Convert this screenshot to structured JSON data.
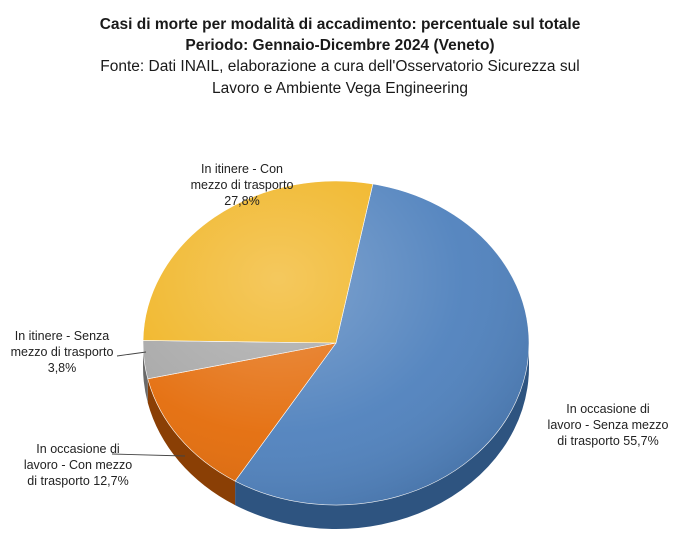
{
  "title": {
    "line1": "Casi di morte per modalità di accadimento: percentuale sul totale",
    "line2": "Periodo: Gennaio-Dicembre 2024 (Veneto)",
    "line3": "Fonte: Dati INAIL, elaborazione a cura dell'Osservatorio Sicurezza sul",
    "line4": "Lavoro e Ambiente Vega Engineering"
  },
  "chart_data": {
    "type": "pie",
    "title": "Casi di morte per modalità di accadimento: percentuale sul totale",
    "subtitle": "Periodo: Gennaio-Dicembre 2024 (Veneto)",
    "source": "Fonte: Dati INAIL, elaborazione a cura dell'Osservatorio Sicurezza sul Lavoro e Ambiente Vega Engineering",
    "unit": "%",
    "slices": [
      {
        "label": "In occasione di lavoro - Senza mezzo di trasporto",
        "value": 55.7,
        "value_text": "55,7%",
        "color": "#4F81BD",
        "dark": "#2E5480",
        "label_lines": [
          "In occasione di",
          "lavoro - Senza mezzo",
          "di trasporto 55,7%"
        ]
      },
      {
        "label": "In occasione di lavoro - Con mezzo di trasporto",
        "value": 12.7,
        "value_text": "12,7%",
        "color": "#E46C0A",
        "dark": "#8A3F05",
        "label_lines": [
          "In occasione di",
          "lavoro - Con mezzo",
          "di trasporto 12,7%"
        ]
      },
      {
        "label": "In itinere - Senza mezzo di trasporto",
        "value": 3.8,
        "value_text": "3,8%",
        "color": "#A6A6A6",
        "dark": "#6A6A6A",
        "label_lines": [
          "In itinere - Senza",
          "mezzo di trasporto",
          "3,8%"
        ]
      },
      {
        "label": "In itinere - Con mezzo di trasporto",
        "value": 27.8,
        "value_text": "27,8%",
        "color": "#F0B31F",
        "dark": "#A07510",
        "label_lines": [
          "In itinere - Con",
          "mezzo di trasporto",
          "27,8%"
        ]
      }
    ],
    "legend": "none"
  }
}
